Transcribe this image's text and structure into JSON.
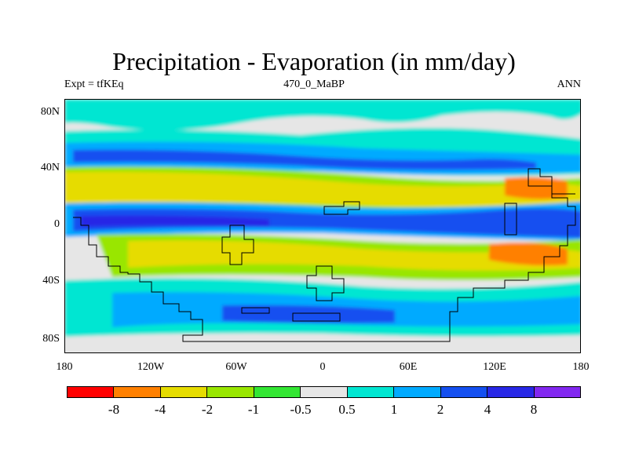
{
  "title": "Precipitation - Evaporation (in mm/day)",
  "subtitle_left": "Expt = tfKEq",
  "subtitle_center": "470_0_MaBP",
  "subtitle_right": "ANN",
  "lat_labels": [
    "80N",
    "40N",
    "0",
    "40S",
    "80S"
  ],
  "lon_labels": [
    "180",
    "120W",
    "60W",
    "0",
    "60E",
    "120E",
    "180"
  ],
  "colorbar": {
    "colors": [
      "#ff0000",
      "#ff8000",
      "#e6dc00",
      "#99e600",
      "#33e633",
      "#e6e6e6",
      "#00e6d2",
      "#00aaff",
      "#1450f0",
      "#2828e6",
      "#8228f0"
    ],
    "labels": [
      "-8",
      "-4",
      "-2",
      "-1",
      "-0.5",
      "0.5",
      "1",
      "2",
      "4",
      "8"
    ]
  },
  "map_colors": {
    "strong_deficit": "#ff8000",
    "deficit": "#e6dc00",
    "weak_deficit": "#99e600",
    "near_zero": "#e6e6e6",
    "weak_surplus": "#00e6d2",
    "surplus": "#00aaff",
    "strong_surplus": "#1450f0",
    "very_strong_surplus": "#2828e6",
    "land_outline": "#000000"
  }
}
